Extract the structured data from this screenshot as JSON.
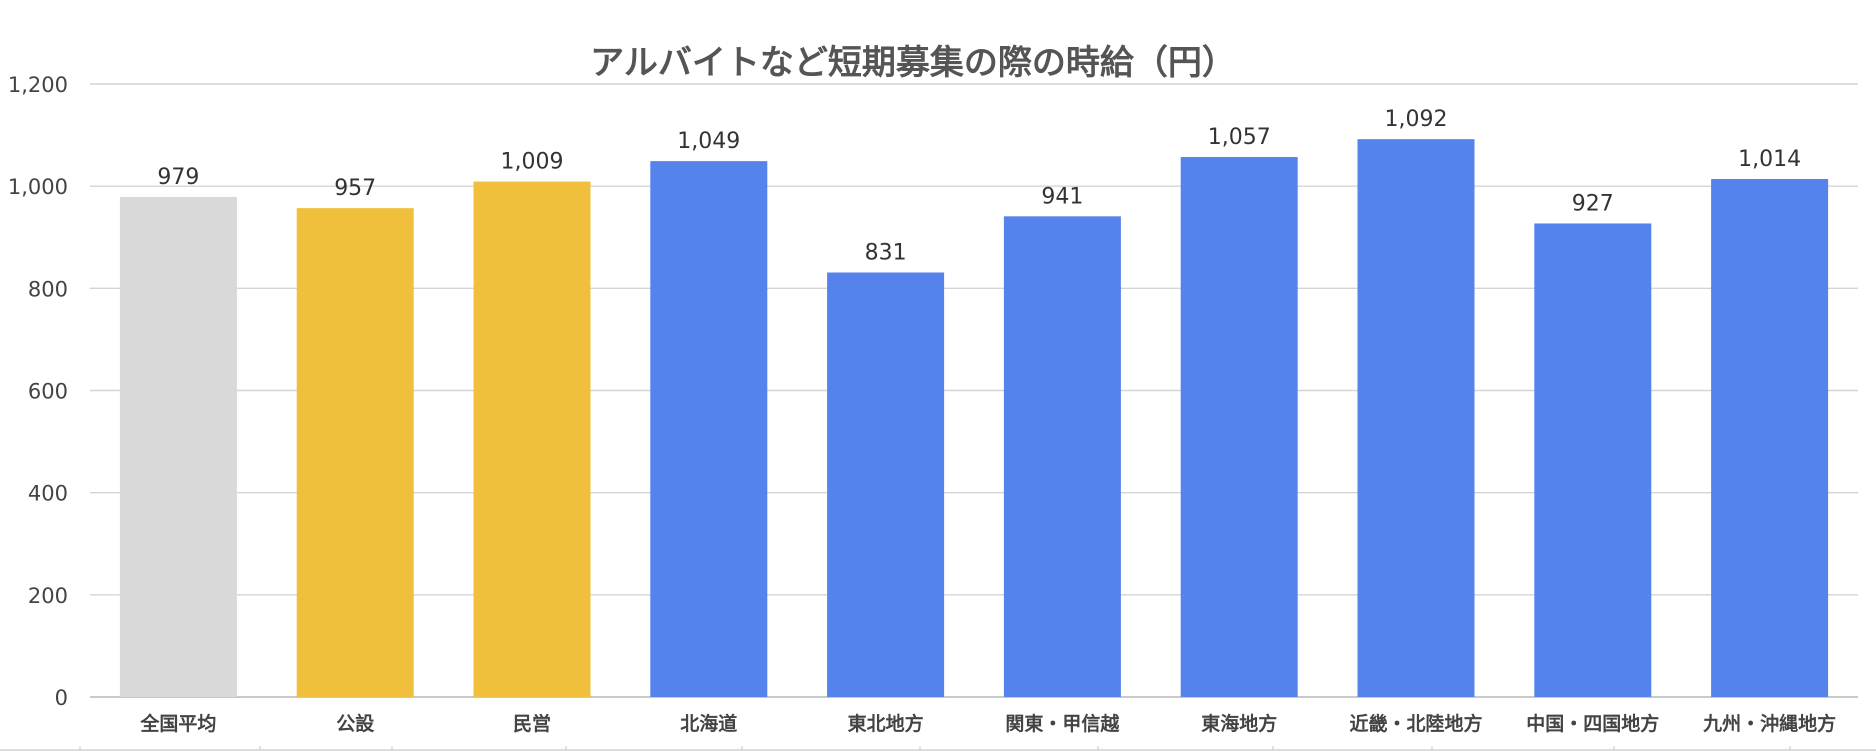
{
  "chart_data": {
    "type": "bar",
    "title": "アルバイトなど短期募集の際の時給（円）",
    "categories": [
      "全国平均",
      "公設",
      "民営",
      "北海道",
      "東北地方",
      "関東・甲信越",
      "東海地方",
      "近畿・北陸地方",
      "中国・四国地方",
      "九州・沖縄地方"
    ],
    "values": [
      979,
      957,
      1009,
      1049,
      831,
      941,
      1057,
      1092,
      927,
      1014
    ],
    "value_labels": [
      "979",
      "957",
      "1,009",
      "1,049",
      "831",
      "941",
      "1,057",
      "1,092",
      "927",
      "1,014"
    ],
    "colors": [
      "#d9d9d9",
      "#f0c03c",
      "#f0c03c",
      "#5682ec",
      "#5682ec",
      "#5682ec",
      "#5682ec",
      "#5682ec",
      "#5682ec",
      "#5682ec"
    ],
    "ylim": [
      0,
      1200
    ],
    "yticks": [
      0,
      200,
      400,
      600,
      800,
      1000,
      1200
    ],
    "ytick_labels": [
      "0",
      "200",
      "400",
      "600",
      "800",
      "1,000",
      "1,200"
    ],
    "grid": true,
    "xlabel": "",
    "ylabel": ""
  }
}
